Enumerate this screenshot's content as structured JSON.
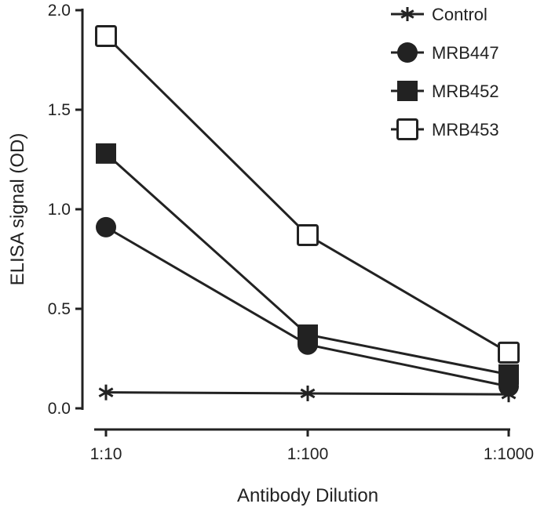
{
  "chart_data": {
    "type": "line",
    "title": "",
    "xlabel": "Antibody Dilution",
    "ylabel": "ELISA signal (OD)",
    "categories": [
      "1:10",
      "1:100",
      "1:1000"
    ],
    "ylim": [
      0,
      2.0
    ],
    "yticks": [
      "0.0",
      "0.5",
      "1.0",
      "1.5",
      "2.0"
    ],
    "grid": false,
    "legend_position": "top-right",
    "series": [
      {
        "name": "Control",
        "marker": "asterisk",
        "values": [
          0.08,
          0.075,
          0.07
        ]
      },
      {
        "name": "MRB447",
        "marker": "filled-circle",
        "values": [
          0.91,
          0.32,
          0.11
        ]
      },
      {
        "name": "MRB452",
        "marker": "filled-square",
        "values": [
          1.28,
          0.37,
          0.17
        ]
      },
      {
        "name": "MRB453",
        "marker": "open-square",
        "values": [
          1.87,
          0.87,
          0.28
        ]
      }
    ]
  }
}
